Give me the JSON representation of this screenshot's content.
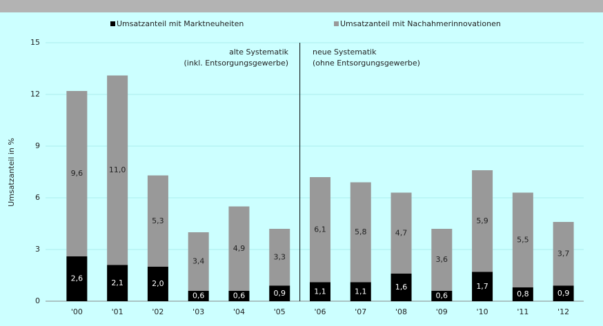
{
  "chart_data": {
    "type": "stacked_bar",
    "categories": [
      "'00",
      "'01",
      "'02",
      "'03",
      "'04",
      "'05",
      "'06",
      "'07",
      "'08",
      "'09",
      "'10",
      "'11",
      "'12"
    ],
    "series": [
      {
        "name": "Umsatzanteil mit Marktneuheiten",
        "color": "#000000",
        "values": [
          2.6,
          2.1,
          2.0,
          0.6,
          0.6,
          0.9,
          1.1,
          1.1,
          1.6,
          0.6,
          1.7,
          0.8,
          0.9
        ],
        "value_labels": [
          "2,6",
          "2,1",
          "2,0",
          "0,6",
          "0,6",
          "0,9",
          "1,1",
          "1,1",
          "1,6",
          "0,6",
          "1,7",
          "0,8",
          "0,9"
        ]
      },
      {
        "name": "Umsatzanteil mit Nachahmerinnovationen",
        "color": "#999999",
        "values": [
          9.6,
          11.0,
          5.3,
          3.4,
          4.9,
          3.3,
          6.1,
          5.8,
          4.7,
          3.6,
          5.9,
          5.5,
          3.7
        ],
        "value_labels": [
          "9,6",
          "11,0",
          "5,3",
          "3,4",
          "4,9",
          "3,3",
          "6,1",
          "5,8",
          "4,7",
          "3,6",
          "5,9",
          "5,5",
          "3,7"
        ]
      }
    ],
    "ylabel": "Umsatzanteil in %",
    "ylim": [
      0,
      15
    ],
    "yticks": [
      0,
      3,
      6,
      9,
      12,
      15
    ],
    "annotations": [
      "alte Systematik",
      "(inkl. Entsorgungsgewerbe)",
      "neue Systematik",
      "(ohne Entsorgungsgewerbe)"
    ]
  }
}
